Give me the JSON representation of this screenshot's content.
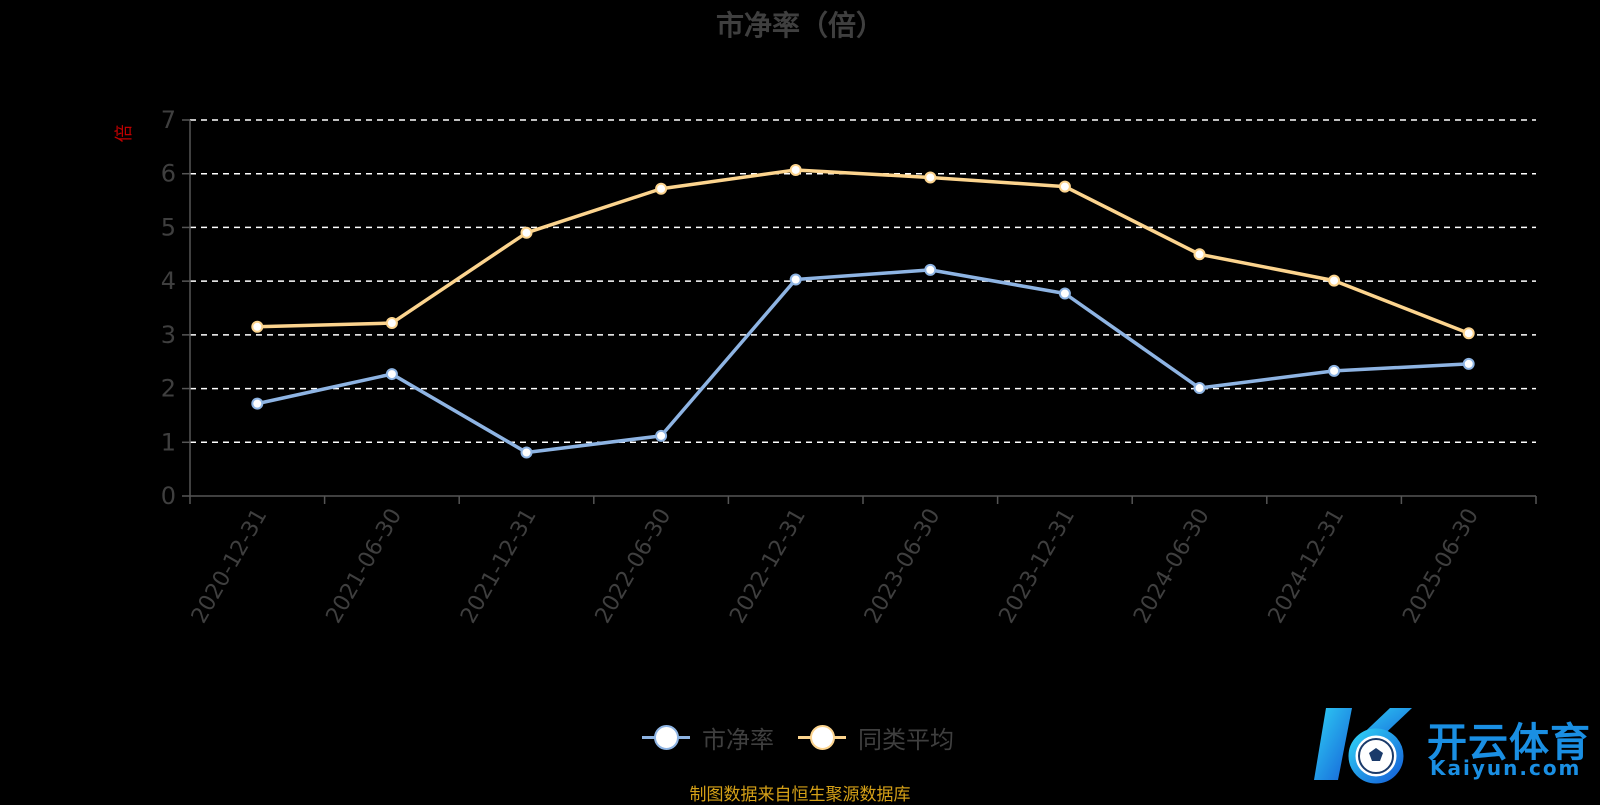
{
  "chart_data": {
    "type": "line",
    "title": "市净率（倍）",
    "ylabel": "倍",
    "xlabel": "",
    "categories": [
      "2020-12-31",
      "2021-06-30",
      "2021-12-31",
      "2022-06-30",
      "2022-12-31",
      "2023-06-30",
      "2023-12-31",
      "2024-06-30",
      "2024-12-31",
      "2025-06-30"
    ],
    "ylim": [
      0,
      7
    ],
    "yticks": [
      "0",
      "1",
      "2",
      "3",
      "4",
      "5",
      "6",
      "7"
    ],
    "grid": true,
    "legend_position": "bottom",
    "series": [
      {
        "name": "市净率",
        "color": "#8eb4e3",
        "values": [
          1.72,
          2.27,
          0.81,
          1.12,
          4.03,
          4.21,
          3.77,
          2.01,
          2.33,
          2.46
        ]
      },
      {
        "name": "同类平均",
        "color": "#fcd48e",
        "values": [
          3.15,
          3.22,
          4.9,
          5.72,
          6.07,
          5.93,
          5.76,
          4.5,
          4.01,
          3.03
        ]
      }
    ]
  },
  "footer": "制图数据来自恒生聚源数据库",
  "watermark": {
    "text": "开云体育",
    "sub": "Kaiyun.com"
  }
}
